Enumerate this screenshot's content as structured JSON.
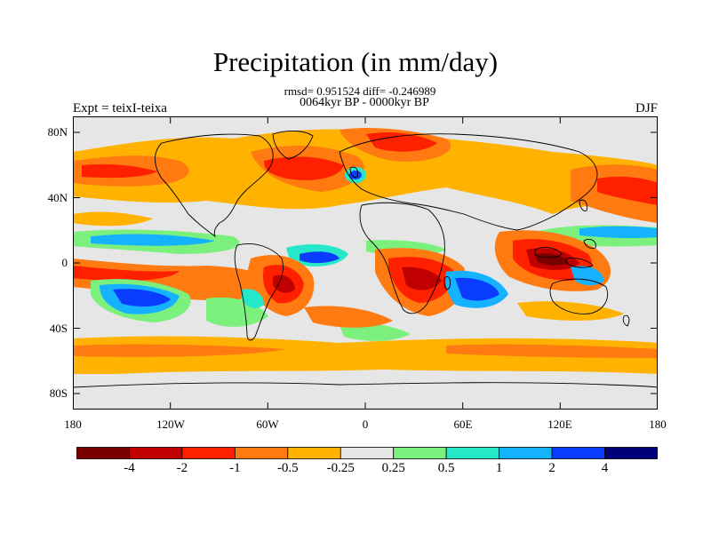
{
  "title": "Precipitation (in mm/day)",
  "stats_line": "rmsd= 0.951524 diff= -0.246989",
  "period_line": "0064kyr BP - 0000kyr BP",
  "left_label": "Expt = teixI-teixa",
  "right_label": "DJF",
  "lat_ticks": [
    "80N",
    "40N",
    "0",
    "40S",
    "80S"
  ],
  "lon_ticks": [
    "180",
    "120W",
    "60W",
    "0",
    "60E",
    "120E",
    "180"
  ],
  "colorbar": {
    "colors": [
      "#7a0000",
      "#c00000",
      "#ff2000",
      "#ff7a10",
      "#ffb300",
      "#e6e6e6",
      "#7cf07c",
      "#25e8c8",
      "#14b2ff",
      "#0a3cff",
      "#00007a"
    ],
    "labels": [
      "-4",
      "-2",
      "-1",
      "-0.5",
      "-0.25",
      "0.25",
      "0.5",
      "1",
      "2",
      "4"
    ]
  }
}
